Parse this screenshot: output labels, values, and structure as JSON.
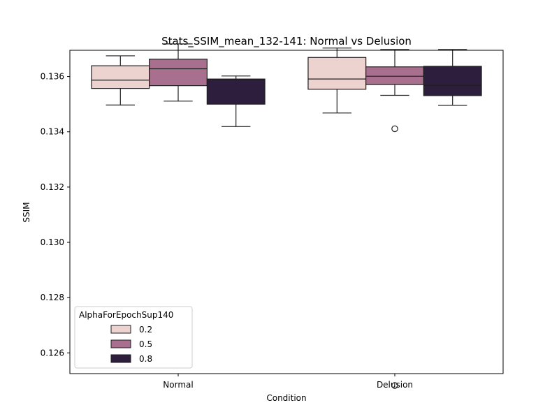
{
  "chart_data": {
    "type": "box",
    "title": "Stats_SSIM_mean_132-141: Normal vs Delusion",
    "xlabel": "Condition",
    "ylabel": "SSIM",
    "ylim": [
      0.12525,
      0.13695
    ],
    "yticks": [
      0.126,
      0.128,
      0.13,
      0.132,
      0.134,
      0.136
    ],
    "ytick_labels": [
      "0.126",
      "0.128",
      "0.130",
      "0.132",
      "0.134",
      "0.136"
    ],
    "categories": [
      "Normal",
      "Delusion"
    ],
    "grid": false,
    "legend": {
      "title": "AlphaForEpochSup140",
      "placement": "lower-left",
      "entries": [
        "0.2",
        "0.5",
        "0.8"
      ]
    },
    "series": [
      {
        "name": "0.2",
        "color": "#ecd3cf",
        "boxes": [
          {
            "category": "Normal",
            "whisker_low": 0.13497,
            "q1": 0.13557,
            "median": 0.13587,
            "q3": 0.13639,
            "whisker_high": 0.13675,
            "outliers": []
          },
          {
            "category": "Delusion",
            "whisker_low": 0.13468,
            "q1": 0.13554,
            "median": 0.13591,
            "q3": 0.13669,
            "whisker_high": 0.13703,
            "outliers": []
          }
        ]
      },
      {
        "name": "0.5",
        "color": "#a86f8e",
        "boxes": [
          {
            "category": "Normal",
            "whisker_low": 0.13511,
            "q1": 0.13567,
            "median": 0.13628,
            "q3": 0.13663,
            "whisker_high": 0.13718,
            "outliers": []
          },
          {
            "category": "Delusion",
            "whisker_low": 0.13532,
            "q1": 0.13571,
            "median": 0.13601,
            "q3": 0.13635,
            "whisker_high": 0.13698,
            "outliers": [
              0.13411,
              0.12482
            ]
          }
        ]
      },
      {
        "name": "0.8",
        "color": "#2d1e3e",
        "boxes": [
          {
            "category": "Normal",
            "whisker_low": 0.13419,
            "q1": 0.135,
            "median": 0.13589,
            "q3": 0.13591,
            "whisker_high": 0.13602,
            "outliers": []
          },
          {
            "category": "Delusion",
            "whisker_low": 0.13496,
            "q1": 0.13531,
            "median": 0.13568,
            "q3": 0.13637,
            "whisker_high": 0.13698,
            "outliers": []
          }
        ]
      }
    ]
  }
}
